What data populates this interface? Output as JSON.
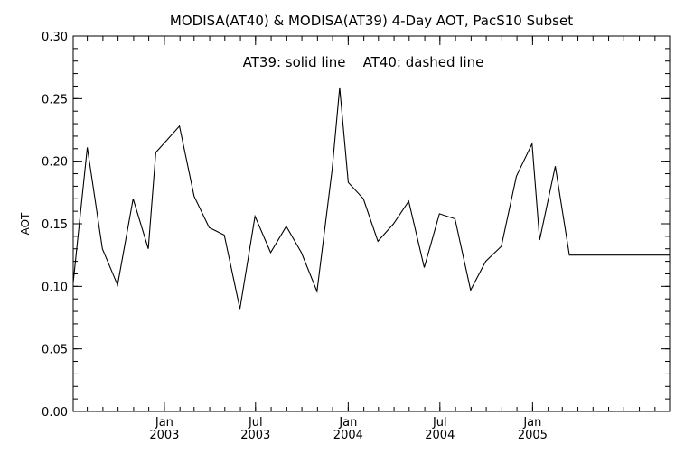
{
  "chart_data": {
    "type": "line",
    "title": "MODISA(AT40) & MODISA(AT39) 4-Day AOT, PacS10 Subset",
    "annotation": "AT39: solid line    AT40: dashed line",
    "ylabel": "AOT",
    "xlabel": "",
    "ylim": [
      0.0,
      0.3
    ],
    "xlim": [
      "2002-07-04",
      "2005-09-30"
    ],
    "grid": false,
    "yticks": [
      {
        "value": 0.0,
        "label": "0.00"
      },
      {
        "value": 0.05,
        "label": "0.05"
      },
      {
        "value": 0.1,
        "label": "0.10"
      },
      {
        "value": 0.15,
        "label": "0.15"
      },
      {
        "value": 0.2,
        "label": "0.20"
      },
      {
        "value": 0.25,
        "label": "0.25"
      },
      {
        "value": 0.3,
        "label": "0.30"
      }
    ],
    "xticks": [
      {
        "value": "2003-01-01",
        "month": "Jan",
        "year": "2003"
      },
      {
        "value": "2003-07-01",
        "month": "Jul",
        "year": "2003"
      },
      {
        "value": "2004-01-01",
        "month": "Jan",
        "year": "2004"
      },
      {
        "value": "2004-07-01",
        "month": "Jul",
        "year": "2004"
      },
      {
        "value": "2005-01-01",
        "month": "Jan",
        "year": "2005"
      }
    ],
    "series": [
      {
        "style": "solid",
        "x": [
          "2002-07-04",
          "2002-08-01",
          "2002-08-31",
          "2002-09-30",
          "2002-10-31",
          "2002-11-30",
          "2002-12-15",
          "2003-01-31",
          "2003-03-01",
          "2003-03-31",
          "2003-04-30",
          "2003-05-31",
          "2003-06-30",
          "2003-07-31",
          "2003-08-31",
          "2003-09-30",
          "2003-10-31",
          "2003-11-30",
          "2003-12-15",
          "2004-01-01",
          "2004-01-31",
          "2004-02-29",
          "2004-03-31",
          "2004-04-30",
          "2004-05-31",
          "2004-06-30",
          "2004-07-31",
          "2004-08-31",
          "2004-09-30",
          "2004-10-31",
          "2004-11-30",
          "2004-12-31",
          "2005-01-15",
          "2005-02-15",
          "2005-03-15",
          "2005-04-15",
          "2005-05-15",
          "2005-06-15",
          "2005-07-15",
          "2005-08-15",
          "2005-09-15",
          "2005-09-30"
        ],
        "values": [
          0.103,
          0.211,
          0.13,
          0.101,
          0.17,
          0.13,
          0.207,
          0.228,
          0.172,
          0.147,
          0.141,
          0.082,
          0.156,
          0.127,
          0.148,
          0.127,
          0.096,
          0.193,
          0.259,
          0.183,
          0.17,
          0.136,
          0.15,
          0.168,
          0.115,
          0.158,
          0.154,
          0.097,
          0.12,
          0.132,
          0.188,
          0.214,
          0.137,
          0.196,
          0.125,
          0.125,
          0.125,
          0.125,
          0.125,
          0.125,
          0.125,
          0.125
        ]
      }
    ]
  }
}
